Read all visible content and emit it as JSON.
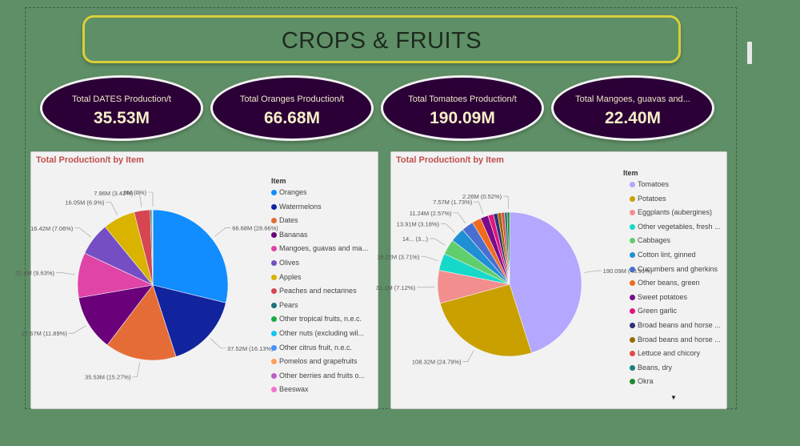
{
  "title": "CROPS & FRUITS",
  "kpis": [
    {
      "label": "Total DATES Production/t",
      "value": "35.53M"
    },
    {
      "label": "Total Oranges Production/t",
      "value": "66.68M"
    },
    {
      "label": "Total Tomatoes Production/t",
      "value": "190.09M"
    },
    {
      "label": "Total Mangoes, guavas and...",
      "value": "22.40M"
    }
  ],
  "chart_data": [
    {
      "type": "pie",
      "title": "Total Production/t by Item",
      "legend_title": "Item",
      "legend_position": "right",
      "slices": [
        {
          "name": "Oranges",
          "value": 66.68,
          "label": "66.68M (28.66%)",
          "color": "#118dff"
        },
        {
          "name": "Watermelons",
          "value": 37.52,
          "label": "37.52M (16.13%)",
          "color": "#12239e"
        },
        {
          "name": "Dates",
          "value": 35.53,
          "label": "35.53M (15.27%)",
          "color": "#e66c37"
        },
        {
          "name": "Bananas",
          "value": 27.67,
          "label": "27.67M (11.89%)",
          "color": "#6b007b"
        },
        {
          "name": "Mangoes, guavas and ma...",
          "value": 22.4,
          "label": "22.4M (9.63%)",
          "color": "#e044a7"
        },
        {
          "name": "Olives",
          "value": 16.42,
          "label": "16.42M (7.06%)",
          "color": "#744ec2"
        },
        {
          "name": "Apples",
          "value": 16.05,
          "label": "16.05M (6.9%)",
          "color": "#d9b300"
        },
        {
          "name": "Peaches and nectarines",
          "value": 7.96,
          "label": "7.96M (3.42%)",
          "color": "#d64550"
        },
        {
          "name": "Pears",
          "value": 0.8,
          "label": "",
          "color": "#197278"
        },
        {
          "name": "Other tropical fruits, n.e.c.",
          "value": 0.3,
          "label": "",
          "color": "#1aab40"
        },
        {
          "name": "Other nuts (excluding wil...",
          "value": 0.1,
          "label": "",
          "color": "#15c6f4"
        },
        {
          "name": "Other citrus fruit, n.e.c.",
          "value": 0.05,
          "label": "",
          "color": "#4092ff"
        },
        {
          "name": "Pomelos and grapefruits",
          "value": 0.03,
          "label": "",
          "color": "#ffa058"
        },
        {
          "name": "Other berries and fruits o...",
          "value": 0.02,
          "label": "",
          "color": "#be5dc9"
        },
        {
          "name": "Beeswax",
          "value": 0.01,
          "label": "0M (0%)",
          "color": "#f472d0"
        }
      ]
    },
    {
      "type": "pie",
      "title": "Total Production/t by Item",
      "legend_title": "Item",
      "legend_position": "right",
      "slices": [
        {
          "name": "Tomatoes",
          "value": 190.09,
          "label": "190.09M (43.51%)",
          "color": "#b3a7ff"
        },
        {
          "name": "Potatoes",
          "value": 108.32,
          "label": "108.32M (24.79%)",
          "color": "#c9a000"
        },
        {
          "name": "Eggplants (aubergines)",
          "value": 31.1,
          "label": "31.1M (7.12%)",
          "color": "#f28e8e"
        },
        {
          "name": "Other vegetables, fresh ...",
          "value": 16.22,
          "label": "16.22M (3.71%)",
          "color": "#17d9c9"
        },
        {
          "name": "Cabbages",
          "value": 14.5,
          "label": "14... (3...)",
          "color": "#5fcf6e"
        },
        {
          "name": "Cotton lint, ginned",
          "value": 13.91,
          "label": "13.91M (3.18%)",
          "color": "#1f8fd4"
        },
        {
          "name": "Cucumbers and gherkins",
          "value": 11.24,
          "label": "11.24M (2.57%)",
          "color": "#4a6fd0"
        },
        {
          "name": "Other beans, green",
          "value": 8.5,
          "label": "",
          "color": "#f26b1d"
        },
        {
          "name": "Sweet potatoes",
          "value": 7.57,
          "label": "7.57M (1.73%)",
          "color": "#7a0c8c"
        },
        {
          "name": "Green garlic",
          "value": 5.0,
          "label": "",
          "color": "#e0157d"
        },
        {
          "name": "Broad beans and horse ...",
          "value": 4.0,
          "label": "",
          "color": "#2f2f7a"
        },
        {
          "name": "Broad beans and horse ...",
          "value": 3.5,
          "label": "",
          "color": "#9a6a00"
        },
        {
          "name": "Lettuce and chicory",
          "value": 3.0,
          "label": "",
          "color": "#e34a4a"
        },
        {
          "name": "Beans, dry",
          "value": 2.6,
          "label": "",
          "color": "#1c7f7f"
        },
        {
          "name": "Okra",
          "value": 2.26,
          "label": "2.26M (0.52%)",
          "color": "#1a8a2a"
        }
      ]
    }
  ]
}
